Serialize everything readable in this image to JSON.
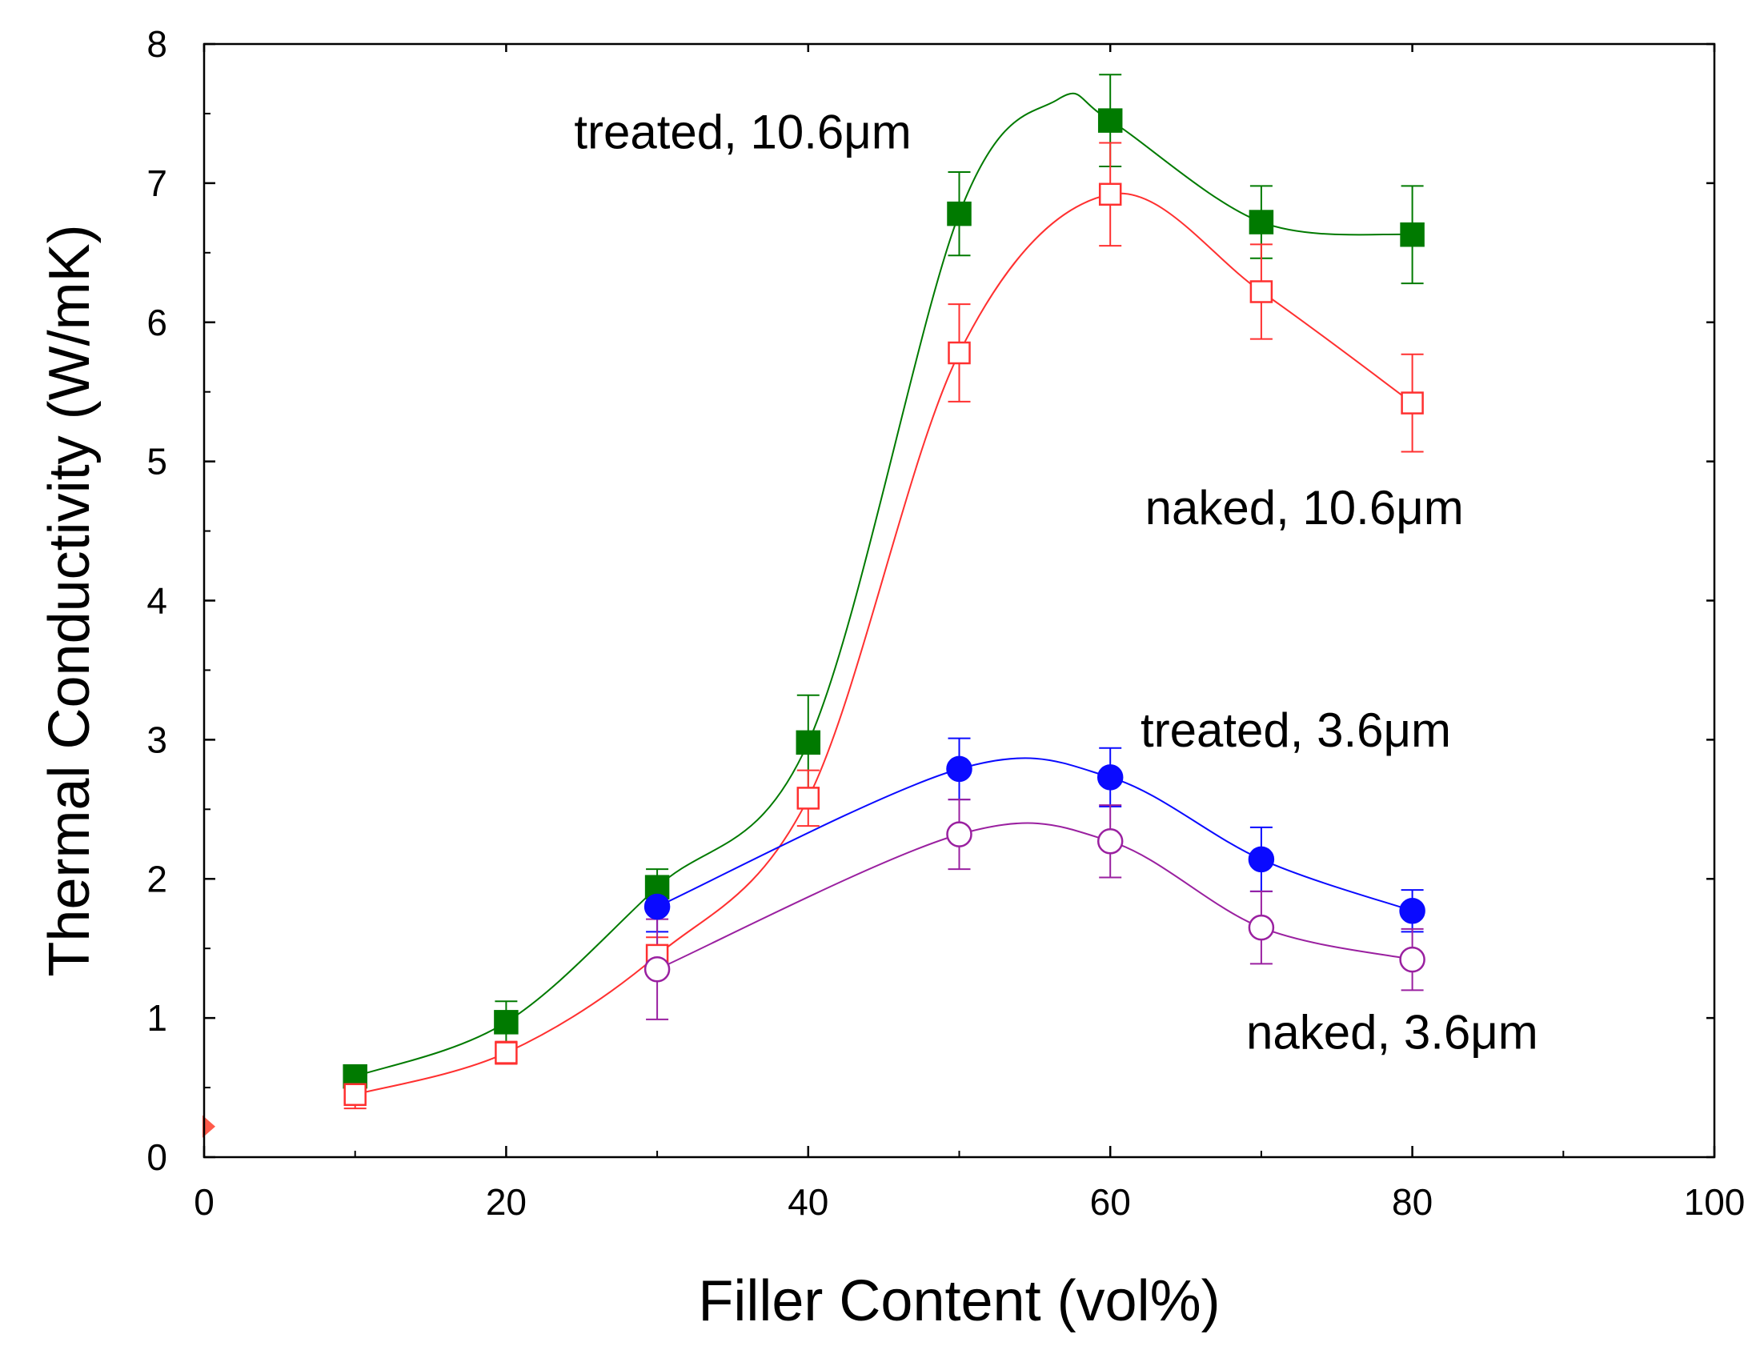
{
  "chart_data": {
    "type": "scatter",
    "xlabel": "Filler Content (vol%)",
    "ylabel": "Thermal Conductivity (W/mK)",
    "xlim": [
      0,
      100
    ],
    "ylim": [
      0,
      8
    ],
    "xticks": [
      0,
      20,
      40,
      60,
      80,
      100
    ],
    "yticks": [
      0,
      1,
      2,
      3,
      4,
      5,
      6,
      7,
      8
    ],
    "grid": false,
    "base_point": {
      "x": 0,
      "y": 0.22,
      "color": "#ff5a4a",
      "marker": "diamond"
    },
    "series": [
      {
        "name": "treated, 10.6μm",
        "label_text": "treated, 10.6μm",
        "label_anchor": {
          "x": 24.5,
          "y": 7.25
        },
        "color": "#007a00",
        "marker": "square",
        "filled": true,
        "x": [
          10,
          20,
          30,
          40,
          50,
          60,
          70,
          80
        ],
        "y": [
          0.58,
          0.97,
          1.94,
          2.98,
          6.78,
          7.45,
          6.72,
          6.63
        ],
        "err": [
          0.07,
          0.15,
          0.13,
          0.34,
          0.3,
          0.33,
          0.26,
          0.35
        ],
        "curve_peak": {
          "x": 56.5,
          "y": 7.6
        }
      },
      {
        "name": "naked, 10.6μm",
        "label_text": "naked, 10.6μm",
        "label_anchor": {
          "x": 62.3,
          "y": 4.55
        },
        "color": "#ff3030",
        "marker": "square",
        "filled": false,
        "x": [
          10,
          20,
          30,
          40,
          50,
          60,
          70,
          80
        ],
        "y": [
          0.45,
          0.75,
          1.45,
          2.58,
          5.78,
          6.92,
          6.22,
          5.42
        ],
        "err": [
          0.1,
          0.08,
          0.13,
          0.2,
          0.35,
          0.37,
          0.34,
          0.35
        ]
      },
      {
        "name": "treated, 3.6μm",
        "label_text": "treated, 3.6μm",
        "label_anchor": {
          "x": 62.0,
          "y": 2.95
        },
        "color": "#0a0aff",
        "marker": "circle",
        "filled": true,
        "x": [
          30,
          50,
          60,
          70,
          80
        ],
        "y": [
          1.8,
          2.79,
          2.73,
          2.14,
          1.77
        ],
        "err": [
          0.18,
          0.22,
          0.21,
          0.23,
          0.15
        ]
      },
      {
        "name": "naked, 3.6μm",
        "label_text": "naked, 3.6μm",
        "label_anchor": {
          "x": 69.0,
          "y": 0.78
        },
        "color": "#9a20a0",
        "marker": "circle",
        "filled": false,
        "x": [
          30,
          50,
          60,
          70,
          80
        ],
        "y": [
          1.35,
          2.32,
          2.27,
          1.65,
          1.42
        ],
        "err": [
          0.36,
          0.25,
          0.26,
          0.26,
          0.22
        ]
      }
    ]
  }
}
